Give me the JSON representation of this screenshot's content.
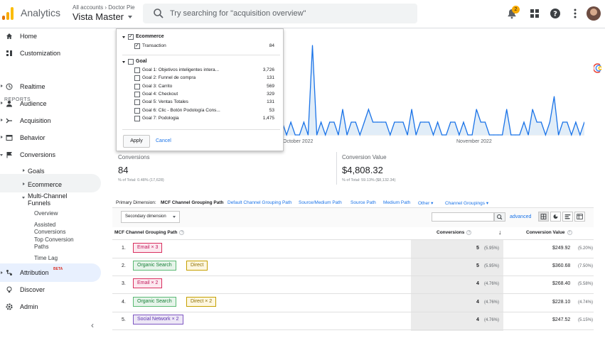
{
  "header": {
    "app_title": "Analytics",
    "account_path": "All accounts › Doctor Pie",
    "view_name": "Vista Master",
    "search_placeholder": "Try searching for \"acquisition overview\"",
    "notification_count": "2"
  },
  "sidebar": {
    "home": "Home",
    "customization": "Customization",
    "reports_header": "REPORTS",
    "realtime": "Realtime",
    "audience": "Audience",
    "acquisition": "Acquisition",
    "behavior": "Behavior",
    "conversions": "Conversions",
    "goals": "Goals",
    "ecommerce": "Ecommerce",
    "multi_channel_l1": "Multi-Channel",
    "multi_channel_l2": "Funnels",
    "overview": "Overview",
    "assisted_l1": "Assisted",
    "assisted_l2": "Conversions",
    "top_paths_l1": "Top Conversion",
    "top_paths_l2": "Paths",
    "time_lag": "Time Lag",
    "attribution": "Attribution",
    "beta": "BETA",
    "discover": "Discover",
    "admin": "Admin"
  },
  "popup": {
    "ecommerce_group": "Ecommerce",
    "transaction_label": "Transaction",
    "transaction_count": "84",
    "goal_group": "Goal",
    "goals": [
      {
        "label": "Goal 1: Objetivos inteligentes intera...",
        "count": "3,726"
      },
      {
        "label": "Goal 2: Funnel de compra",
        "count": "131"
      },
      {
        "label": "Goal 3: Carrito",
        "count": "569"
      },
      {
        "label": "Goal 4: Checkout",
        "count": "329"
      },
      {
        "label": "Goal 5: Ventas Totales",
        "count": "131"
      },
      {
        "label": "Goal 6: Clic - Botón Podología Cons...",
        "count": "53"
      },
      {
        "label": "Goal 7: Podologia",
        "count": "1,475"
      }
    ],
    "apply": "Apply",
    "cancel": "Cancel"
  },
  "chart": {
    "x_labels": [
      "October 2022",
      "November 2022"
    ]
  },
  "chart_data": {
    "type": "area",
    "series": [
      {
        "values": [
          1,
          0,
          1,
          0,
          0,
          1,
          0,
          7,
          0,
          1,
          0,
          1,
          1,
          0,
          2,
          0,
          1,
          1,
          0,
          1,
          2,
          1,
          1,
          1,
          1,
          0,
          1,
          1,
          1,
          0,
          2,
          0,
          1,
          1,
          1,
          0,
          1,
          0,
          0,
          1,
          1,
          0,
          1,
          0,
          0,
          2,
          1,
          1,
          0,
          0,
          0,
          0,
          2,
          0,
          0,
          0,
          1,
          0,
          2,
          1,
          1,
          0,
          1,
          3,
          0,
          1,
          1,
          0,
          1,
          0,
          1
        ]
      }
    ]
  },
  "metrics": {
    "conversions_label": "Conversions",
    "conversions_value": "84",
    "conversions_total": "% of Total: 0.48% (17,628)",
    "value_label": "Conversion Value",
    "value_value": "$4,808.32",
    "value_total": "% of Total: 59.13% ($8,132.34)"
  },
  "primary_dimension": {
    "label": "Primary Dimension:",
    "selected": "MCF Channel Grouping Path",
    "options": [
      "Default Channel Grouping Path",
      "Source/Medium Path",
      "Source Path",
      "Medium Path",
      "Other",
      "Channel Groupings"
    ]
  },
  "toolbar": {
    "secondary_dimension": "Secondary dimension",
    "advanced": "advanced"
  },
  "table": {
    "col_path": "MCF Channel Grouping Path",
    "col_conversions": "Conversions",
    "col_value": "Conversion Value",
    "rows": [
      {
        "num": "1.",
        "chips": [
          "Email × 3"
        ],
        "conv": "5",
        "conv_pct": "(5.95%)",
        "val": "$249.92",
        "val_pct": "(5.20%)"
      },
      {
        "num": "2.",
        "chips": [
          "Organic Search",
          "Direct"
        ],
        "conv": "5",
        "conv_pct": "(5.95%)",
        "val": "$360.68",
        "val_pct": "(7.50%)"
      },
      {
        "num": "3.",
        "chips": [
          "Email × 2"
        ],
        "conv": "4",
        "conv_pct": "(4.76%)",
        "val": "$268.40",
        "val_pct": "(5.58%)"
      },
      {
        "num": "4.",
        "chips": [
          "Organic Search",
          "Direct × 2"
        ],
        "conv": "4",
        "conv_pct": "(4.76%)",
        "val": "$228.10",
        "val_pct": "(4.74%)"
      },
      {
        "num": "5.",
        "chips": [
          "Social Network × 2"
        ],
        "conv": "4",
        "conv_pct": "(4.76%)",
        "val": "$247.52",
        "val_pct": "(5.15%)"
      }
    ]
  },
  "colors": {
    "accent": "#1a73e8",
    "chart_line": "#1a73e8",
    "chart_fill": "#e1edf8"
  }
}
